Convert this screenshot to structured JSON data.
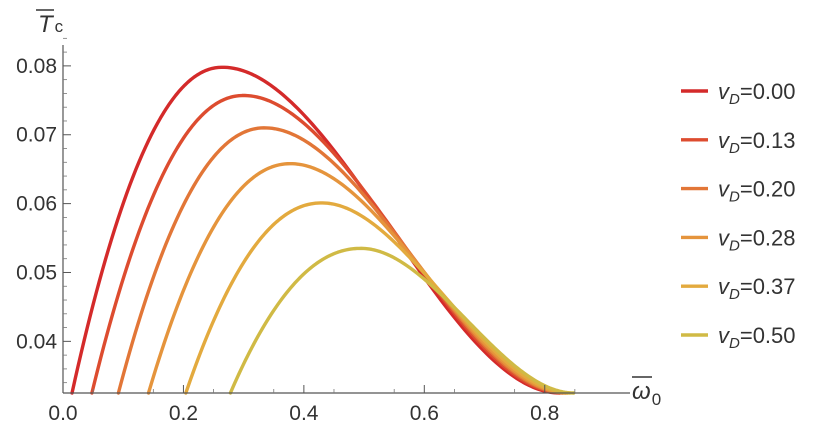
{
  "chart_data": {
    "type": "line",
    "xlabel": "ω",
    "xlabel_sub": "0",
    "ylabel": "T",
    "ylabel_sub": "c",
    "xlim": [
      0,
      0.92
    ],
    "ylim": [
      0.0325,
      0.0855
    ],
    "x_ticks": [
      0.0,
      0.2,
      0.4,
      0.6,
      0.8
    ],
    "x_tick_labels": [
      "0.0",
      "0.2",
      "0.4",
      "0.6",
      "0.8"
    ],
    "y_ticks": [
      0.04,
      0.05,
      0.06,
      0.07,
      0.08
    ],
    "y_tick_labels": [
      "0.04",
      "0.05",
      "0.06",
      "0.07",
      "0.08"
    ],
    "grid": false,
    "legend_position": "right",
    "series": [
      {
        "name": "0.00",
        "color": "#d42a2a",
        "peak_x": 0.265,
        "peak_y": 0.0798,
        "x_start": 0.015,
        "x_end": 0.825
      },
      {
        "name": "0.13",
        "color": "#dd4c2f",
        "peak_x": 0.3,
        "peak_y": 0.0757,
        "x_start": 0.048,
        "x_end": 0.83
      },
      {
        "name": "0.20",
        "color": "#e27637",
        "peak_x": 0.335,
        "peak_y": 0.071,
        "x_start": 0.092,
        "x_end": 0.835
      },
      {
        "name": "0.28",
        "color": "#e5943c",
        "peak_x": 0.378,
        "peak_y": 0.0658,
        "x_start": 0.142,
        "x_end": 0.838
      },
      {
        "name": "0.37",
        "color": "#e3aa3e",
        "peak_x": 0.43,
        "peak_y": 0.0601,
        "x_start": 0.204,
        "x_end": 0.842
      },
      {
        "name": "0.50",
        "color": "#d0ba45",
        "peak_x": 0.495,
        "peak_y": 0.0535,
        "x_start": 0.278,
        "x_end": 0.848
      }
    ],
    "legend_prefix": "v",
    "legend_prefix_sub": "D",
    "legend_sep": "="
  }
}
